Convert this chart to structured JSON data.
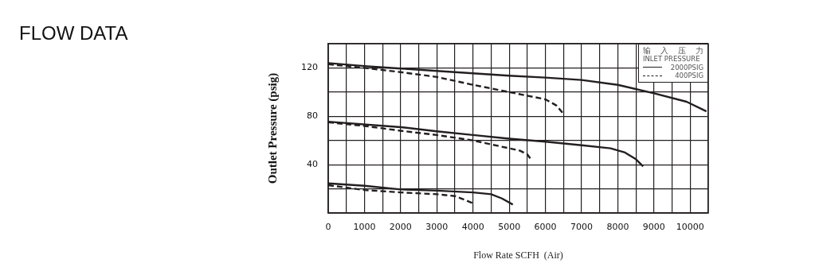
{
  "chart_data": {
    "type": "line",
    "title": "FLOW DATA",
    "xlabel": "Flow Rate SCFH  (Air)",
    "ylabel": "Outlet Pressure (psig)",
    "legend_title": "输 入 压 力\nINLET PRESSURE",
    "xlim": [
      0,
      10500
    ],
    "ylim": [
      0,
      140
    ],
    "xticks": [
      0,
      {
        "value": 500,
        "label": null
      },
      1000,
      {
        "value": 1500,
        "label": null
      },
      2000,
      {
        "value": 2500,
        "label": null
      },
      3000,
      {
        "value": 3500,
        "label": null
      },
      4000,
      {
        "value": 4500,
        "label": null
      },
      5000,
      {
        "value": 5500,
        "label": null
      },
      6000,
      {
        "value": 6500,
        "label": null
      },
      7000,
      {
        "value": 7500,
        "label": null
      },
      8000,
      {
        "value": 8500,
        "label": null
      },
      9000,
      {
        "value": 9500,
        "label": null
      },
      10000,
      {
        "value": 10500,
        "label": null
      }
    ],
    "yticks": [
      {
        "value": 0,
        "label": null
      },
      {
        "value": 20,
        "label": null
      },
      40,
      {
        "value": 60,
        "label": null
      },
      80,
      {
        "value": 100,
        "label": null
      },
      120,
      {
        "value": 140,
        "label": null
      }
    ],
    "grid": true,
    "legend": "top right",
    "marker": "none",
    "series": [
      {
        "name": "2000PSIG",
        "color": "#231f20",
        "line_style": "solid",
        "x": [
          0,
          1000,
          2000,
          3000,
          4000,
          5000,
          6000,
          7000,
          8000,
          9000,
          9900,
          10450
        ],
        "values": [
          124,
          121.5,
          119.5,
          117.5,
          115.5,
          113.5,
          112,
          110,
          106,
          99,
          92,
          84
        ]
      },
      {
        "name": "400PSIG",
        "color": "#231f20",
        "line_style": "dashed",
        "x": [
          0,
          1000,
          2000,
          3000,
          4000,
          5000,
          6000,
          6300,
          6500
        ],
        "values": [
          123,
          120,
          116.5,
          112.5,
          106,
          100,
          94,
          89,
          82
        ]
      },
      {
        "color": "#231f20",
        "line_style": "solid",
        "x": [
          0,
          2000,
          3000,
          4000,
          5000,
          6000,
          7000,
          7800,
          8200,
          8500,
          8700
        ],
        "values": [
          75.5,
          71,
          67.5,
          64.5,
          61.5,
          59,
          56,
          53.5,
          50,
          44.5,
          38.5
        ]
      },
      {
        "color": "#231f20",
        "line_style": "dashed",
        "x": [
          0,
          1000,
          2000,
          3000,
          4000,
          5000,
          5300,
          5500,
          5600
        ],
        "values": [
          75,
          72,
          68,
          64.5,
          60,
          53.5,
          51.5,
          48.5,
          44.5
        ]
      },
      {
        "color": "#231f20",
        "line_style": "solid",
        "x": [
          0,
          1000,
          2000,
          3000,
          4000,
          4500,
          4800,
          5100
        ],
        "values": [
          24.5,
          22.5,
          19.5,
          18.5,
          17,
          15.5,
          12,
          7
        ]
      },
      {
        "color": "#231f20",
        "line_style": "dashed",
        "x": [
          0,
          1000,
          2000,
          3000,
          3500,
          3800,
          4000
        ],
        "values": [
          23,
          19,
          17,
          15.5,
          14,
          10.5,
          8
        ]
      }
    ]
  }
}
